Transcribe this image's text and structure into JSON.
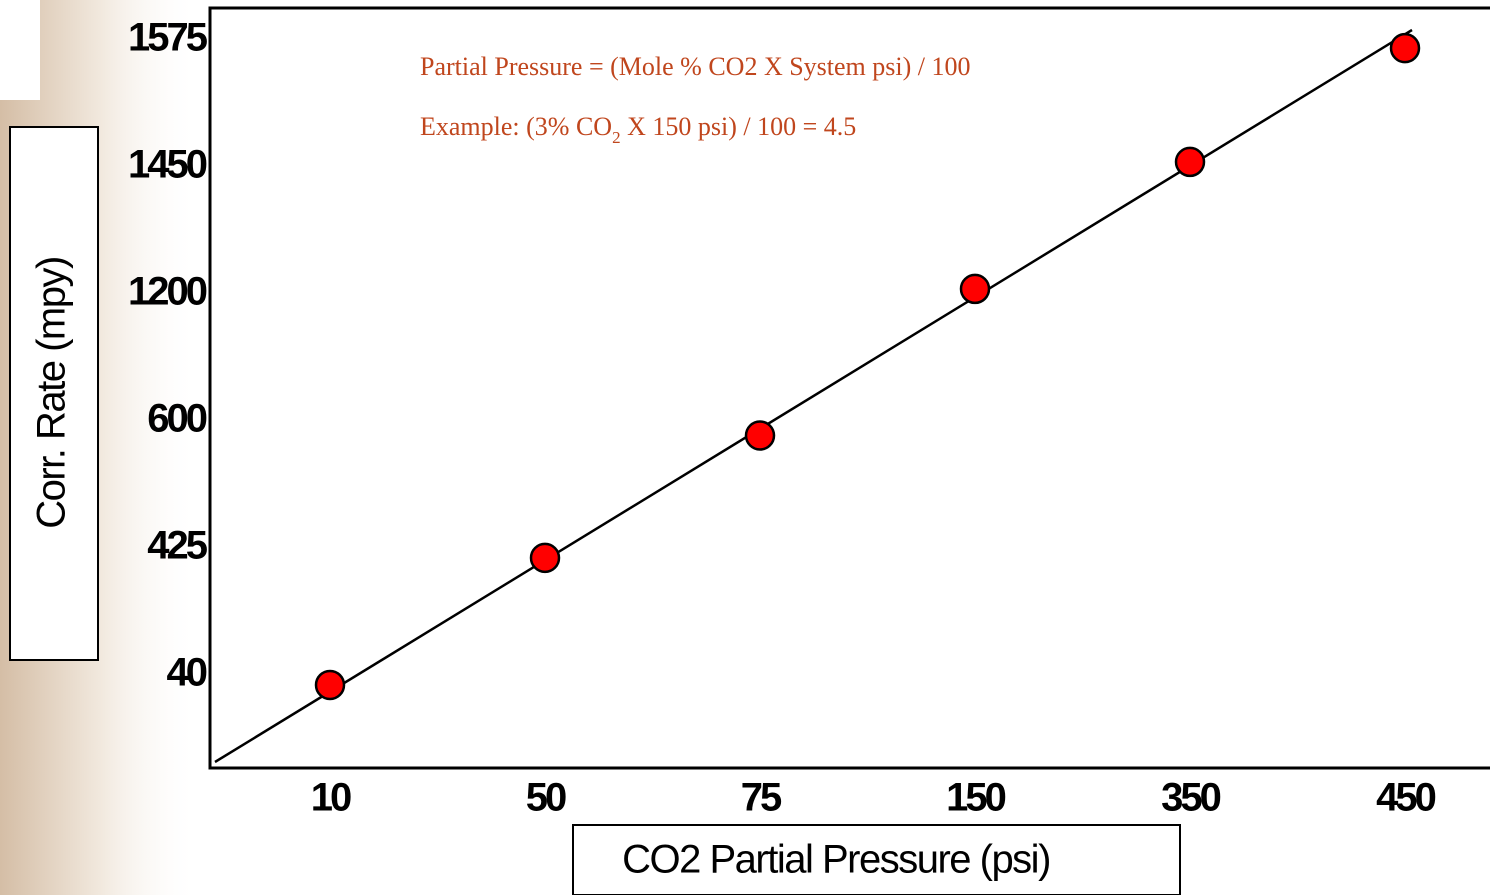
{
  "chart_data": {
    "type": "scatter",
    "categories": [
      "10",
      "50",
      "75",
      "150",
      "350",
      "450"
    ],
    "values": [
      10,
      395,
      580,
      1210,
      1455,
      1567
    ],
    "color": "#ff0000",
    "ylim": [
      -240,
      1610
    ],
    "yticks": [
      40,
      425,
      600,
      1200,
      1450,
      1575
    ],
    "ylabel": "Corr. Rate (mpy)",
    "xlabel": "CO2 Partial Pressure (psi)",
    "annotations": [
      "Partial Pressure = (Mole % CO2 X System psi) / 100",
      [
        "Example:  (3% CO",
        "2",
        " X 150 psi) / 100 = 4.5"
      ]
    ]
  }
}
